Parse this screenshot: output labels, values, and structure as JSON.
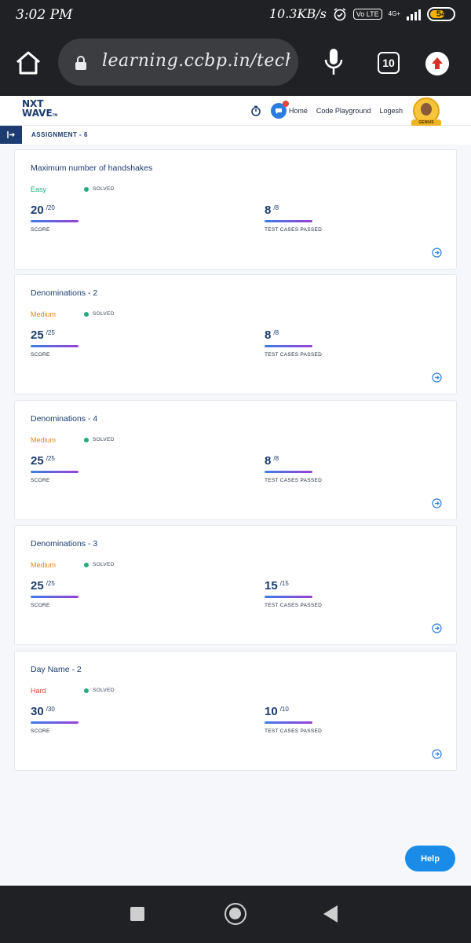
{
  "status_bar": {
    "time": "3:02 PM",
    "speed": "10.3KB/s",
    "volte": "Vo LTE",
    "network": "4G+",
    "battery": "54"
  },
  "browser": {
    "url": "learning.ccbp.in/tech",
    "tab_count": "10",
    "icons": [
      "home-icon",
      "lock-icon",
      "mic-icon",
      "tabs-icon",
      "update-icon"
    ]
  },
  "app_header": {
    "logo_line1": "NXT",
    "logo_line2": "WAVE",
    "nav": {
      "home": "Home",
      "code_playground": "Code Playground",
      "user": "Logesh"
    },
    "badge": "GENIUS"
  },
  "assignment": {
    "label": "ASSIGNMENT - 6"
  },
  "labels": {
    "solved": "SOLVED",
    "score": "SCORE",
    "test_cases": "TEST CASES PASSED"
  },
  "colors": {
    "easy": "#1eaf7a",
    "medium": "#e6861a",
    "hard": "#d9482b",
    "primary": "#1c3b6f"
  },
  "problems": [
    {
      "title": "Maximum number of handshakes",
      "difficulty": "Easy",
      "score": "20",
      "score_total": "/20",
      "tests": "8",
      "tests_total": "/8"
    },
    {
      "title": "Denominations - 2",
      "difficulty": "Medium",
      "score": "25",
      "score_total": "/25",
      "tests": "8",
      "tests_total": "/8"
    },
    {
      "title": "Denominations - 4",
      "difficulty": "Medium",
      "score": "25",
      "score_total": "/25",
      "tests": "8",
      "tests_total": "/8"
    },
    {
      "title": "Denominations - 3",
      "difficulty": "Medium",
      "score": "25",
      "score_total": "/25",
      "tests": "15",
      "tests_total": "/15"
    },
    {
      "title": "Day Name - 2",
      "difficulty": "Hard",
      "score": "30",
      "score_total": "/30",
      "tests": "10",
      "tests_total": "/10"
    }
  ],
  "help": {
    "label": "Help"
  }
}
